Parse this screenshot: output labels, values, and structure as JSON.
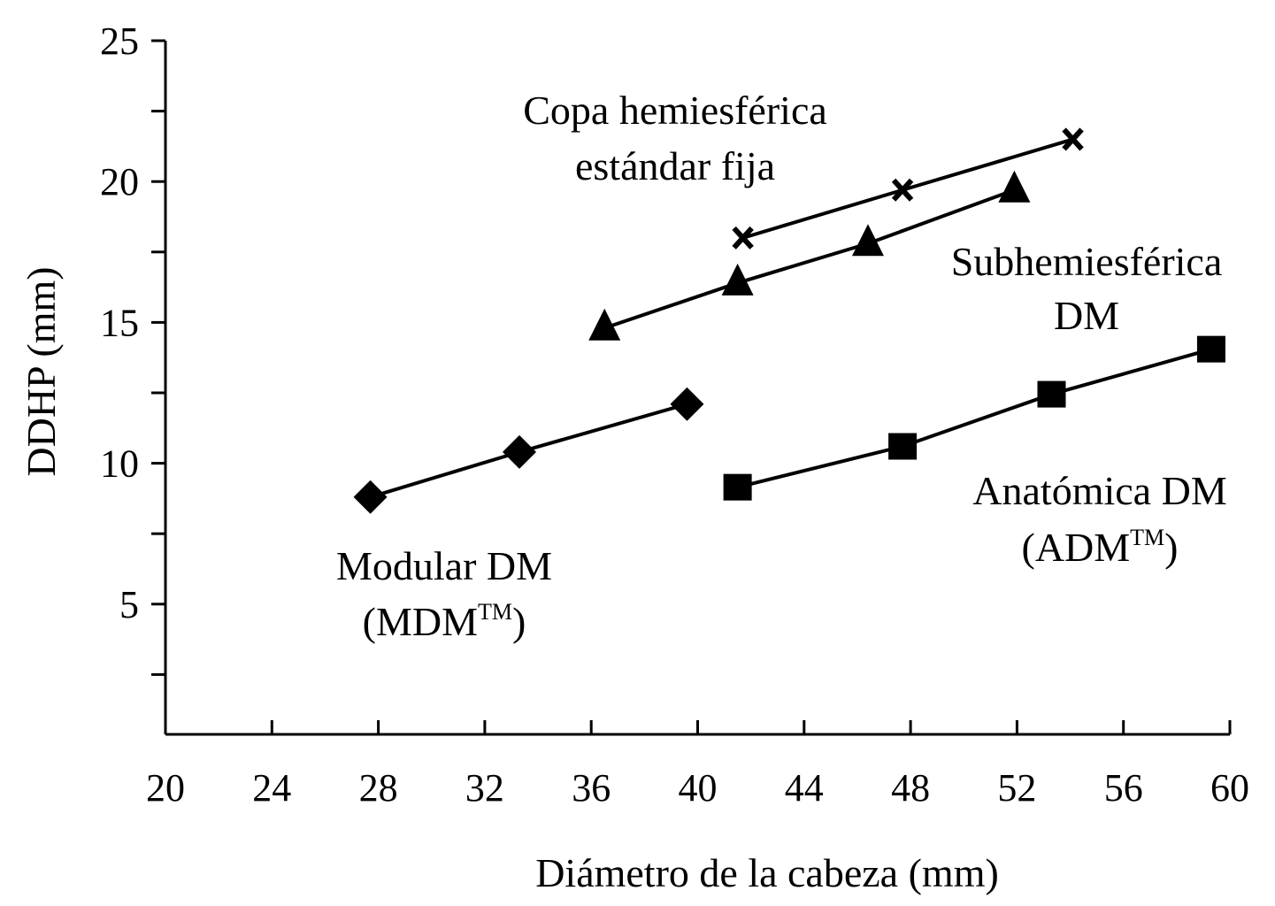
{
  "chart_data": {
    "type": "line",
    "title": "",
    "xlabel": "Diámetro de la cabeza (mm)",
    "ylabel": "DDHP (mm)",
    "xlim": [
      20,
      60
    ],
    "ylim": [
      0,
      25
    ],
    "xticks": [
      20,
      24,
      28,
      32,
      36,
      40,
      44,
      48,
      52,
      56,
      60
    ],
    "yticks": [
      5,
      10,
      15,
      20,
      25
    ],
    "yminor": [
      2.5,
      7.5,
      12.5,
      17.5,
      22.5
    ],
    "grid": false,
    "series": [
      {
        "name": "Modular DM (MDM™)",
        "label_lines": [
          "Modular DM",
          "(MDM",
          "TM",
          ")"
        ],
        "marker": "diamond",
        "x": [
          27.7,
          33.3,
          39.6
        ],
        "y": [
          8.8,
          10.4,
          12.1
        ]
      },
      {
        "name": "Subhemiesférica DM",
        "label_lines": [
          "Subhemiesférica",
          "DM"
        ],
        "marker": "triangle",
        "x": [
          36.5,
          41.5,
          46.4,
          51.9
        ],
        "y": [
          14.8,
          16.4,
          17.8,
          19.7
        ]
      },
      {
        "name": "Copa hemiesférica estándar fija",
        "label_lines": [
          "Copa hemiesférica",
          "estándar fija"
        ],
        "marker": "x",
        "x": [
          41.7,
          47.7,
          54.1
        ],
        "y": [
          18.0,
          19.7,
          21.5
        ]
      },
      {
        "name": "Anatómica DM (ADM™)",
        "label_lines": [
          "Anatómica DM",
          "(ADM",
          "TM",
          ")"
        ],
        "marker": "square",
        "x": [
          41.5,
          47.7,
          53.3,
          59.3
        ],
        "y": [
          9.15,
          10.6,
          12.45,
          14.05
        ]
      }
    ]
  }
}
